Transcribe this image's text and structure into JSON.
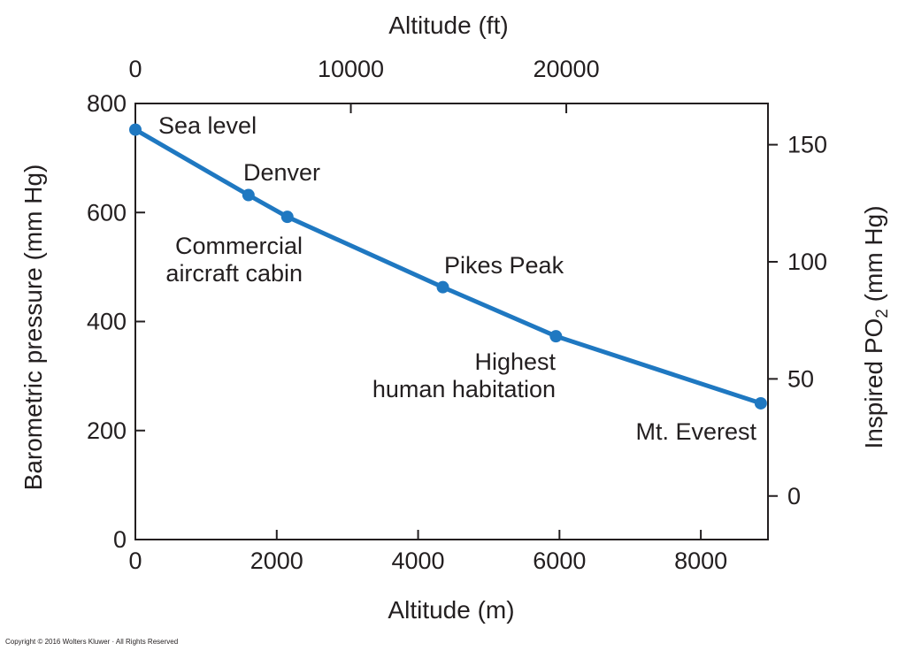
{
  "chart_data": {
    "type": "line",
    "title": "",
    "xlabel": "Altitude (m)",
    "x2label": "Altitude (ft)",
    "ylabel": "Barometric pressure (mm Hg)",
    "y2label_main": "Inspired PO",
    "y2label_sub": "2",
    "y2label_unit": " (mm Hg)",
    "xlim": [
      0,
      8950
    ],
    "ylim": [
      0,
      800
    ],
    "x2lim": [
      0,
      29360
    ],
    "y2lim": [
      -18.6,
      167.6
    ],
    "xticks": [
      0,
      2000,
      4000,
      6000,
      8000
    ],
    "yticks": [
      0,
      200,
      400,
      600,
      800
    ],
    "x2ticks": [
      0,
      10000,
      20000
    ],
    "y2ticks": [
      0,
      50,
      100,
      150
    ],
    "grid": false,
    "line_color": "#1f78c1",
    "series": [
      {
        "x": [
          0,
          1600,
          2150,
          4350,
          5950,
          8848
        ],
        "y": [
          752,
          632,
          592,
          463,
          373,
          250
        ]
      }
    ],
    "annotations": [
      {
        "lines": [
          "Sea level"
        ],
        "x": 0,
        "y": 752,
        "anchor": "start"
      },
      {
        "lines": [
          "Denver"
        ],
        "x": 1600,
        "y": 632,
        "anchor": "start"
      },
      {
        "lines": [
          "Commercial",
          "aircraft cabin"
        ],
        "x": 2150,
        "y": 592,
        "anchor": "end"
      },
      {
        "lines": [
          "Pikes Peak"
        ],
        "x": 4350,
        "y": 463,
        "anchor": "start"
      },
      {
        "lines": [
          "Highest",
          "human habitation"
        ],
        "x": 5950,
        "y": 373,
        "anchor": "end"
      },
      {
        "lines": [
          "Mt. Everest"
        ],
        "x": 8848,
        "y": 250,
        "anchor": "end"
      }
    ]
  },
  "footer": {
    "copyright": "Copyright © 2016 Wolters Kluwer · All Rights Reserved"
  }
}
